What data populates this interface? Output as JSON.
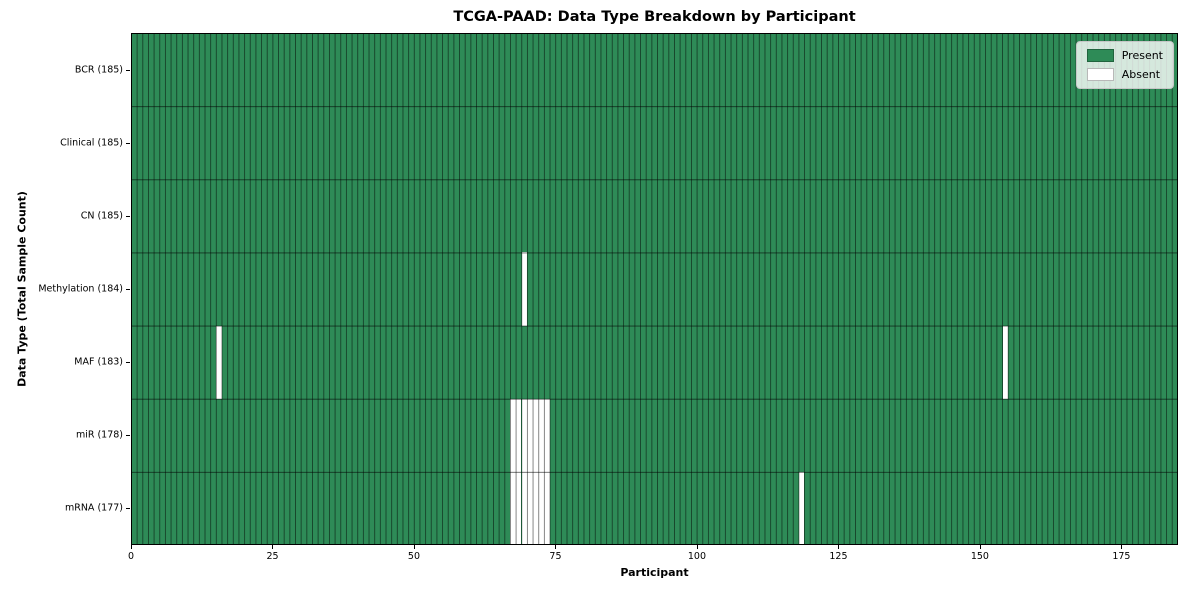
{
  "chart": {
    "title": "TCGA-PAAD: Data Type Breakdown by Participant",
    "xlabel": "Participant",
    "ylabel": "Data Type (Total Sample Count)"
  },
  "chart_data": {
    "type": "heatmap",
    "title": "TCGA-PAAD: Data Type Breakdown by Participant",
    "xlabel": "Participant",
    "ylabel": "Data Type (Total Sample Count)",
    "n_participants": 185,
    "x_range": [
      0,
      185
    ],
    "x_ticks": [
      0,
      25,
      50,
      75,
      100,
      125,
      150,
      175
    ],
    "grid": true,
    "legend_position": "upper right",
    "colors": {
      "present": "#2e8b57",
      "absent": "#ffffff"
    },
    "rows": [
      {
        "label": "BCR (185)",
        "data_type": "BCR",
        "total_samples": 185,
        "absent_participants": []
      },
      {
        "label": "Clinical (185)",
        "data_type": "Clinical",
        "total_samples": 185,
        "absent_participants": []
      },
      {
        "label": "CN (185)",
        "data_type": "CN",
        "total_samples": 185,
        "absent_participants": []
      },
      {
        "label": "Methylation (184)",
        "data_type": "Methylation",
        "total_samples": 184,
        "absent_participants": [
          69
        ]
      },
      {
        "label": "MAF (183)",
        "data_type": "MAF",
        "total_samples": 183,
        "absent_participants": [
          15,
          154
        ]
      },
      {
        "label": "miR (178)",
        "data_type": "miR",
        "total_samples": 178,
        "absent_participants": [
          67,
          68,
          69,
          70,
          71,
          72,
          73
        ]
      },
      {
        "label": "mRNA (177)",
        "data_type": "mRNA",
        "total_samples": 177,
        "absent_participants": [
          67,
          68,
          69,
          70,
          71,
          72,
          73,
          118
        ]
      }
    ],
    "legend": [
      {
        "label": "Present",
        "color": "#2e8b57"
      },
      {
        "label": "Absent",
        "color": "#ffffff"
      }
    ]
  }
}
